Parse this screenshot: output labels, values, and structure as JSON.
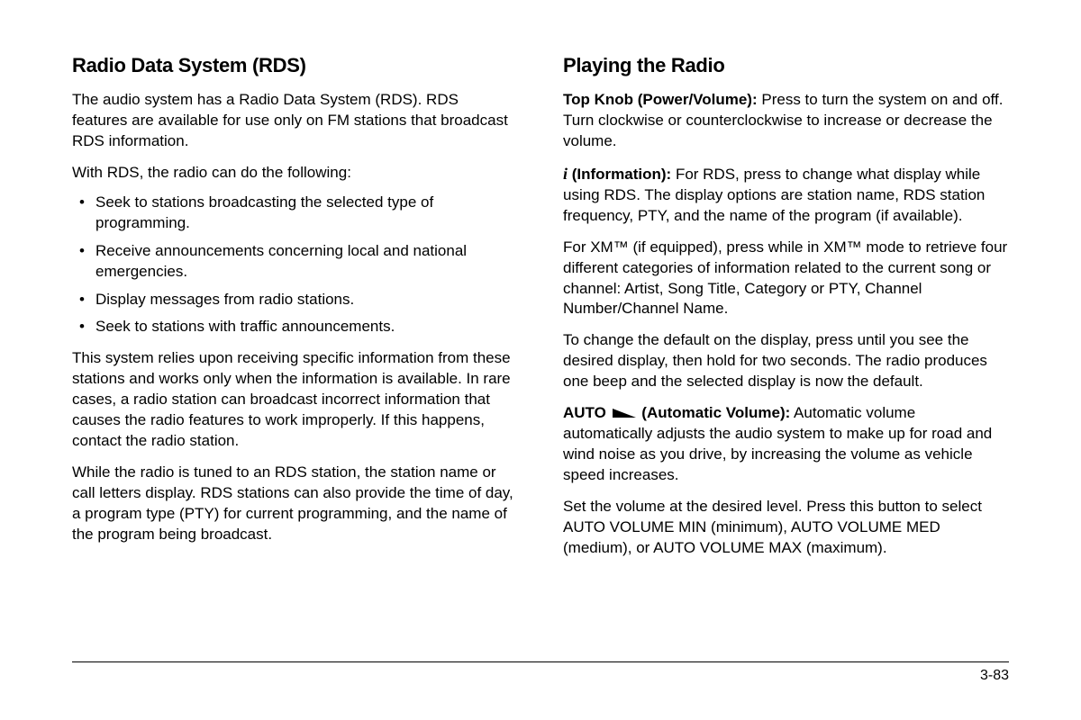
{
  "leftColumn": {
    "heading": "Radio Data System (RDS)",
    "intro1": "The audio system has a Radio Data System (RDS). RDS features are available for use only on FM stations that broadcast RDS information.",
    "intro2": "With RDS, the radio can do the following:",
    "bullets": [
      "Seek to stations broadcasting the selected type of programming.",
      "Receive announcements concerning local and national emergencies.",
      "Display messages from radio stations.",
      "Seek to stations with traffic announcements."
    ],
    "para3": "This system relies upon receiving specific information from these stations and works only when the information is available. In rare cases, a radio station can broadcast incorrect information that causes the radio features to work improperly. If this happens, contact the radio station.",
    "para4": "While the radio is tuned to an RDS station, the station name or call letters display. RDS stations can also provide the time of day, a program type (PTY) for current programming, and the name of the program being broadcast."
  },
  "rightColumn": {
    "heading": "Playing the Radio",
    "knobLabel": "Top Knob (Power/Volume):",
    "knobText": "  Press to turn the system on and off. Turn clockwise or counterclockwise to increase or decrease the volume.",
    "infoLabel": " (Information):",
    "infoText": "  For RDS, press to change what display while using RDS. The display options are station name, RDS station frequency, PTY, and the name of the program (if available).",
    "xmPara": "For XM™ (if equipped), press while in XM™ mode to retrieve four different categories of information related to the current song or channel: Artist, Song Title, Category or PTY, Channel Number/Channel Name.",
    "defaultPara": "To change the default on the display, press until you see the desired display, then hold for two seconds. The radio produces one beep and the selected display is now the default.",
    "autoLabel1": "AUTO ",
    "autoLabel2": " (Automatic Volume):",
    "autoText": "  Automatic volume automatically adjusts the audio system to make up for road and wind noise as you drive, by increasing the volume as vehicle speed increases.",
    "volumePara": "Set the volume at the desired level. Press this button to select AUTO VOLUME MIN (minimum), AUTO VOLUME MED (medium), or AUTO VOLUME MAX (maximum)."
  },
  "pageNumber": "3-83"
}
